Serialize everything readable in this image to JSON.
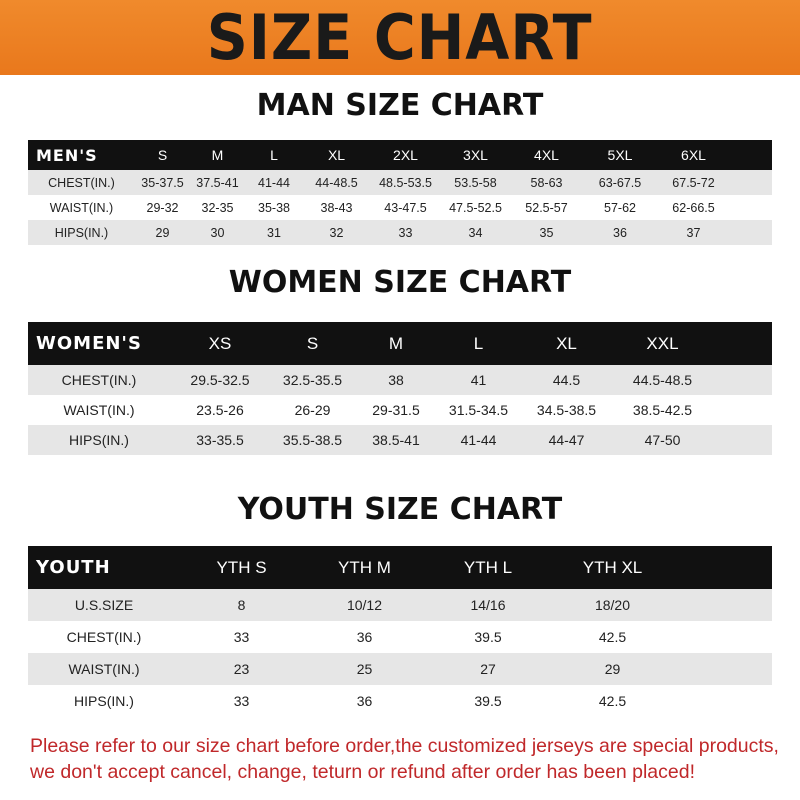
{
  "title": "SIZE CHART",
  "men": {
    "heading": "MAN SIZE CHART",
    "label": "MEN'S",
    "sizes": [
      "S",
      "M",
      "L",
      "XL",
      "2XL",
      "3XL",
      "4XL",
      "5XL",
      "6XL"
    ],
    "rows": [
      {
        "label": "CHEST(IN.)",
        "values": [
          "35-37.5",
          "37.5-41",
          "41-44",
          "44-48.5",
          "48.5-53.5",
          "53.5-58",
          "58-63",
          "63-67.5",
          "67.5-72"
        ]
      },
      {
        "label": "WAIST(IN.)",
        "values": [
          "29-32",
          "32-35",
          "35-38",
          "38-43",
          "43-47.5",
          "47.5-52.5",
          "52.5-57",
          "57-62",
          "62-66.5"
        ]
      },
      {
        "label": "HIPS(IN.)",
        "values": [
          "29",
          "30",
          "31",
          "32",
          "33",
          "34",
          "35",
          "36",
          "37"
        ]
      }
    ]
  },
  "women": {
    "heading": "WOMEN SIZE CHART",
    "label": "WOMEN'S",
    "sizes": [
      "XS",
      "S",
      "M",
      "L",
      "XL",
      "XXL"
    ],
    "rows": [
      {
        "label": "CHEST(IN.)",
        "values": [
          "29.5-32.5",
          "32.5-35.5",
          "38",
          "41",
          "44.5",
          "44.5-48.5"
        ]
      },
      {
        "label": "WAIST(IN.)",
        "values": [
          "23.5-26",
          "26-29",
          "29-31.5",
          "31.5-34.5",
          "34.5-38.5",
          "38.5-42.5"
        ]
      },
      {
        "label": "HIPS(IN.)",
        "values": [
          "33-35.5",
          "35.5-38.5",
          "38.5-41",
          "41-44",
          "44-47",
          "47-50"
        ]
      }
    ]
  },
  "youth": {
    "heading": "YOUTH SIZE CHART",
    "label": "YOUTH",
    "sizes": [
      "YTH S",
      "YTH M",
      "YTH L",
      "YTH XL"
    ],
    "rows": [
      {
        "label": "U.S.SIZE",
        "values": [
          "8",
          "10/12",
          "14/16",
          "18/20"
        ]
      },
      {
        "label": "CHEST(IN.)",
        "values": [
          "33",
          "36",
          "39.5",
          "42.5"
        ]
      },
      {
        "label": "WAIST(IN.)",
        "values": [
          "23",
          "25",
          "27",
          "29"
        ]
      },
      {
        "label": "HIPS(IN.)",
        "values": [
          "33",
          "36",
          "39.5",
          "42.5"
        ]
      }
    ]
  },
  "footer": {
    "line1": "Please refer to our size chart before order,the customized jerseys are special products,",
    "line2": "we don't accept cancel, change, teturn or refund after order has been placed!"
  },
  "colors": {
    "banner": "#ec7f22",
    "header_row": "#111111",
    "stripe": "#e6e6e6",
    "footer_text": "#c0282a"
  }
}
